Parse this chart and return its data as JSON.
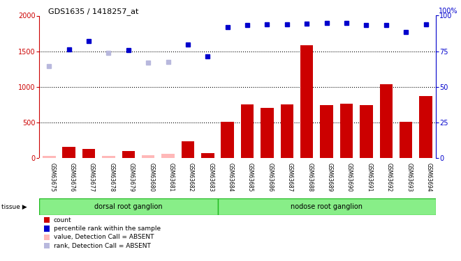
{
  "title": "GDS1635 / 1418257_at",
  "samples": [
    "GSM63675",
    "GSM63676",
    "GSM63677",
    "GSM63678",
    "GSM63679",
    "GSM63680",
    "GSM63681",
    "GSM63682",
    "GSM63683",
    "GSM63684",
    "GSM63685",
    "GSM63686",
    "GSM63687",
    "GSM63688",
    "GSM63689",
    "GSM63690",
    "GSM63691",
    "GSM63692",
    "GSM63693",
    "GSM63694"
  ],
  "count_values": [
    30,
    160,
    130,
    30,
    100,
    40,
    60,
    230,
    65,
    510,
    750,
    700,
    750,
    1580,
    740,
    760,
    740,
    1040,
    510,
    870
  ],
  "rank_values": [
    64.75,
    76.5,
    82.25,
    74.0,
    76.0,
    67.0,
    67.25,
    79.5,
    71.5,
    92.0,
    93.5,
    94.0,
    94.0,
    94.5,
    95.0,
    94.75,
    93.5,
    93.5,
    88.5,
    94.0
  ],
  "absent_mask": [
    true,
    false,
    false,
    true,
    false,
    true,
    true,
    false,
    false,
    false,
    false,
    false,
    false,
    false,
    false,
    false,
    false,
    false,
    false,
    false
  ],
  "tissue_groups": [
    {
      "label": "dorsal root ganglion",
      "start": 0,
      "end": 9
    },
    {
      "label": "nodose root ganglion",
      "start": 9,
      "end": 20
    }
  ],
  "ylim_left": [
    0,
    2000
  ],
  "ylim_right": [
    0,
    100
  ],
  "yticks_left": [
    0,
    500,
    1000,
    1500,
    2000
  ],
  "yticks_right": [
    0,
    25,
    50,
    75,
    100
  ],
  "bar_color": "#cc0000",
  "bar_absent_color": "#ffb8b8",
  "rank_color": "#0000cc",
  "rank_absent_color": "#b8b8dd",
  "bg_color": "#cccccc",
  "tissue_color": "#88ee88",
  "tissue_border_color": "#22bb22",
  "grid_color": "#000000",
  "left_axis_color": "#cc0000",
  "right_axis_color": "#0000cc",
  "legend_items": [
    {
      "label": "count",
      "color": "#cc0000"
    },
    {
      "label": "percentile rank within the sample",
      "color": "#0000cc"
    },
    {
      "label": "value, Detection Call = ABSENT",
      "color": "#ffb8b8"
    },
    {
      "label": "rank, Detection Call = ABSENT",
      "color": "#b8b8dd"
    }
  ]
}
